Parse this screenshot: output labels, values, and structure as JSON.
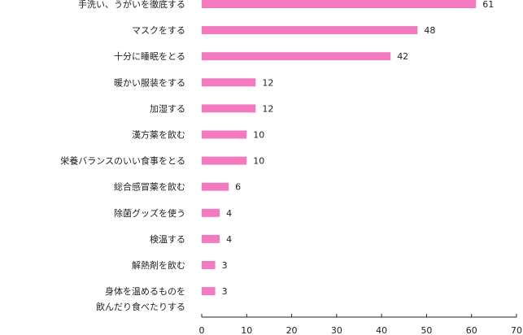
{
  "chart_data": {
    "type": "bar",
    "orientation": "horizontal",
    "categories": [
      "手洗い、うがいを徹底する",
      "マスクをする",
      "十分に睡眠をとる",
      "暖かい服装をする",
      "加湿する",
      "漢方薬を飲む",
      "栄養バランスのいい食事をとる",
      "総合感冒薬を飲む",
      "除菌グッズを使う",
      "検温する",
      "解熱剤を飲む",
      "身体を温めるものを\n飲んだり食べたりする"
    ],
    "values": [
      61,
      48,
      42,
      12,
      12,
      10,
      10,
      6,
      4,
      4,
      3,
      3
    ],
    "xlim": [
      0,
      70
    ],
    "xticks": [
      0,
      10,
      20,
      30,
      40,
      50,
      60,
      70
    ],
    "grid": false,
    "bar_color": "#f47ac0",
    "title": "",
    "xlabel": "",
    "ylabel": ""
  }
}
